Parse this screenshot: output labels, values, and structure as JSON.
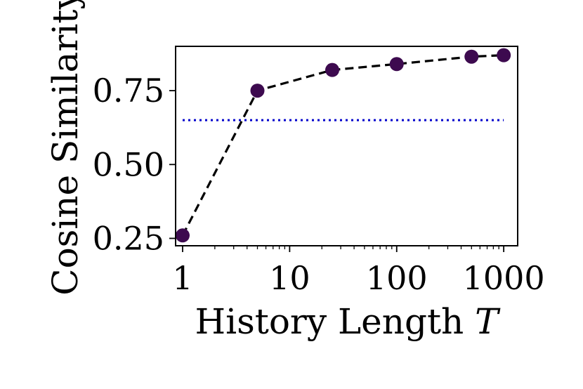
{
  "chart_data": {
    "type": "line",
    "xlabel": "History Length",
    "xlabel_var": "T",
    "ylabel": "Cosine Similarity",
    "x_scale": "log",
    "x": [
      1,
      5,
      25,
      100,
      500,
      1000
    ],
    "y": [
      0.26,
      0.75,
      0.82,
      0.84,
      0.865,
      0.87
    ],
    "xlim": [
      0.86,
      1350
    ],
    "ylim": [
      0.225,
      0.9
    ],
    "xticks": [
      1,
      10,
      100,
      1000
    ],
    "xtick_labels": [
      "1",
      "10",
      "100",
      "1000"
    ],
    "yticks": [
      0.25,
      0.5,
      0.75
    ],
    "ytick_labels": [
      "0.25",
      "0.50",
      "0.75"
    ],
    "reference_line": {
      "y": 0.65,
      "x_range": [
        1,
        1000
      ],
      "style": "dotted",
      "color": "#0000cc"
    },
    "series_style": {
      "line": "dashed",
      "line_color": "#000000",
      "marker": "circle",
      "marker_color": "#3d0a4f"
    },
    "grid": false,
    "legend": "none"
  }
}
